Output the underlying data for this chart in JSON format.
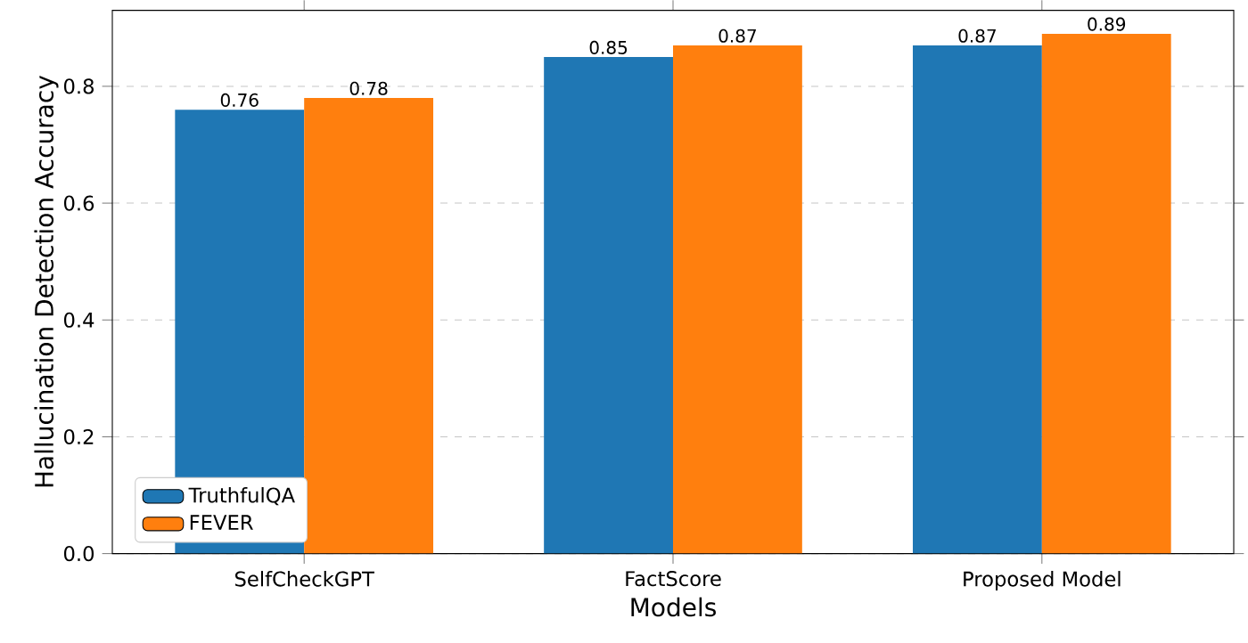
{
  "chart_data": {
    "type": "bar",
    "xlabel": "Models",
    "ylabel": "Hallucination Detection Accuracy",
    "categories": [
      "SelfCheckGPT",
      "FactScore",
      "Proposed Model"
    ],
    "series": [
      {
        "name": "TruthfulQA",
        "color": "#1f77b4",
        "values": [
          0.76,
          0.85,
          0.87
        ]
      },
      {
        "name": "FEVER",
        "color": "#ff7f0e",
        "values": [
          0.78,
          0.87,
          0.89
        ]
      }
    ],
    "ylim": [
      0,
      0.93
    ],
    "yticks": [
      {
        "value": 0,
        "label": "0.0"
      },
      {
        "value": 0.2,
        "label": "0.2"
      },
      {
        "value": 0.4,
        "label": "0.4"
      },
      {
        "value": 0.6,
        "label": "0.6"
      },
      {
        "value": 0.8,
        "label": "0.8"
      }
    ],
    "grid": "y",
    "legend": "bottom left",
    "data_labels": true
  }
}
